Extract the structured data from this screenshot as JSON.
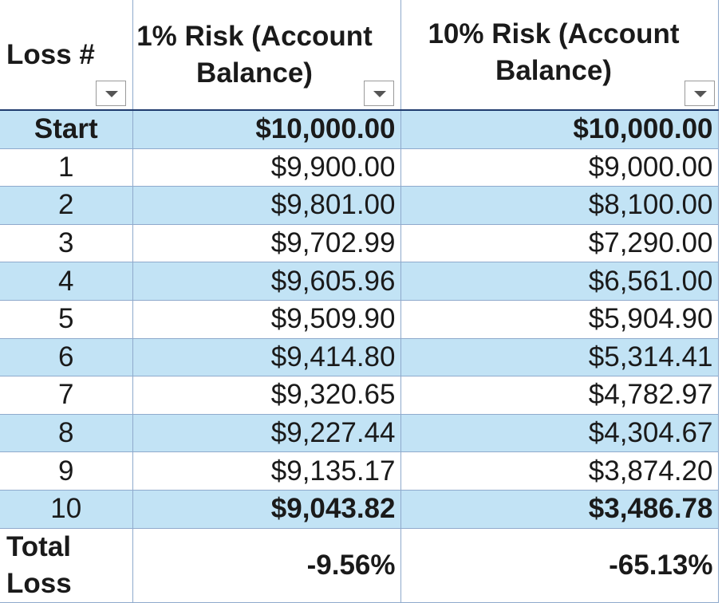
{
  "table": {
    "headers": {
      "loss_num": "Loss #",
      "risk1": "1% Risk (Account Balance)",
      "risk10": "10% Risk (Account Balance)"
    },
    "rows": [
      {
        "loss": "Start",
        "risk1": "$10,000.00",
        "risk10": "$10,000.00"
      },
      {
        "loss": "1",
        "risk1": "$9,900.00",
        "risk10": "$9,000.00"
      },
      {
        "loss": "2",
        "risk1": "$9,801.00",
        "risk10": "$8,100.00"
      },
      {
        "loss": "3",
        "risk1": "$9,702.99",
        "risk10": "$7,290.00"
      },
      {
        "loss": "4",
        "risk1": "$9,605.96",
        "risk10": "$6,561.00"
      },
      {
        "loss": "5",
        "risk1": "$9,509.90",
        "risk10": "$5,904.90"
      },
      {
        "loss": "6",
        "risk1": "$9,414.80",
        "risk10": "$5,314.41"
      },
      {
        "loss": "7",
        "risk1": "$9,320.65",
        "risk10": "$4,782.97"
      },
      {
        "loss": "8",
        "risk1": "$9,227.44",
        "risk10": "$4,304.67"
      },
      {
        "loss": "9",
        "risk1": "$9,135.17",
        "risk10": "$3,874.20"
      },
      {
        "loss": "10",
        "risk1": "$9,043.82",
        "risk10": "$3,486.78"
      }
    ],
    "total": {
      "label": "Total Loss",
      "risk1": "-9.56%",
      "risk10": "-65.13%"
    }
  },
  "colors": {
    "band": "#c2e3f5",
    "header_rule": "#1f3b6e",
    "grid": "#8faacc"
  },
  "icons": {
    "filter": "chevron-down-icon"
  }
}
